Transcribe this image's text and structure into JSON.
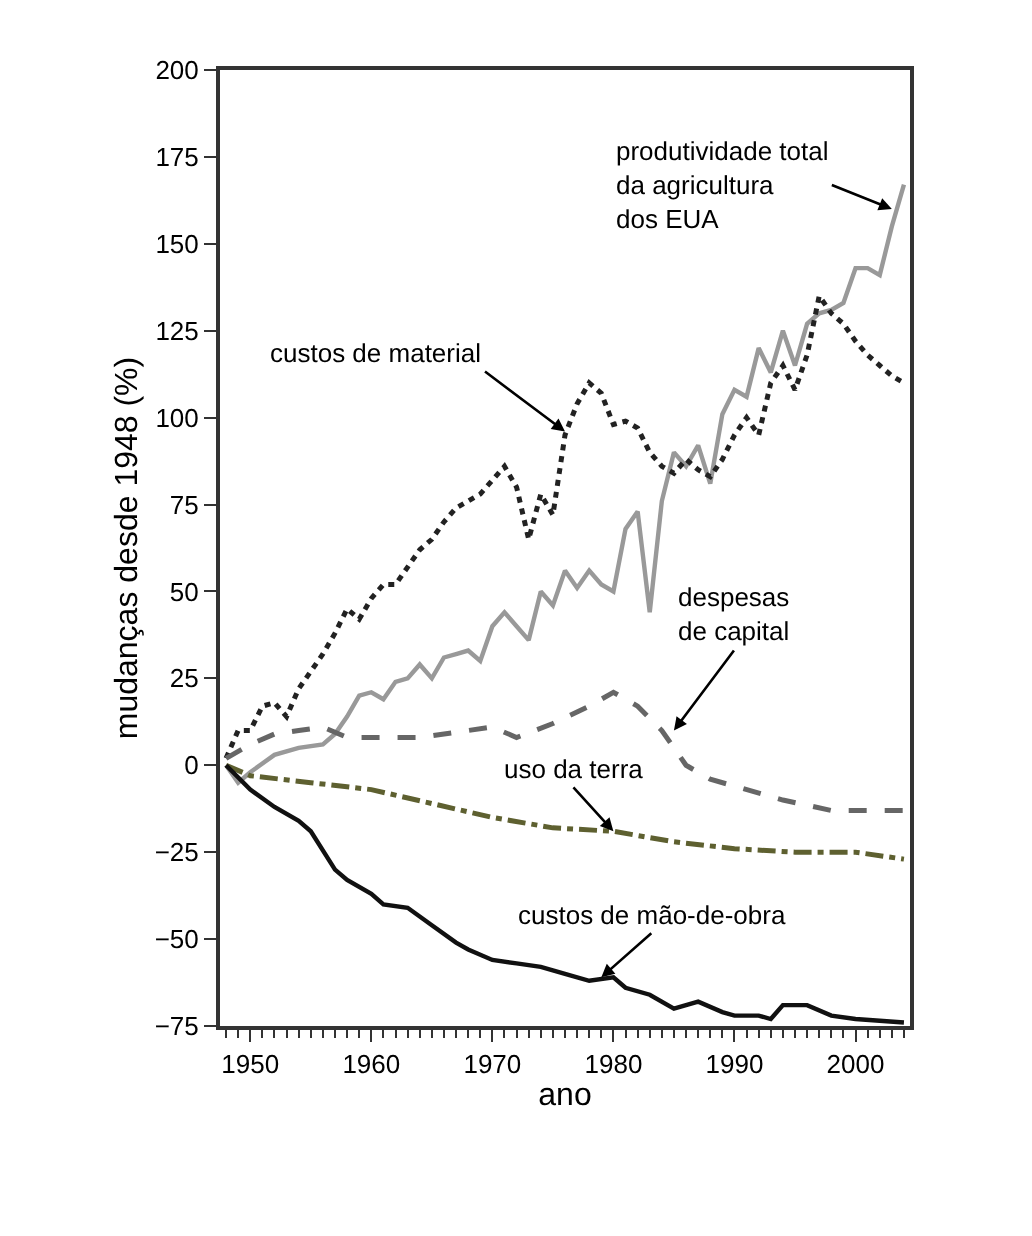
{
  "chart_data": {
    "type": "line",
    "xlabel": "ano",
    "ylabel": "mudanças desde 1948 (%)",
    "xlim": [
      1947.5,
      2004.5
    ],
    "xticks": [
      1950,
      1960,
      1970,
      1980,
      1990,
      2000
    ],
    "ylim": [
      -75,
      200
    ],
    "yticks": [
      -75,
      -50,
      -25,
      0,
      25,
      50,
      75,
      100,
      125,
      150,
      175,
      200
    ],
    "marker": "none",
    "series": [
      {
        "color": "#999999",
        "line_style": "solid",
        "x": [
          1948,
          1949,
          1950,
          1952,
          1954,
          1956,
          1957,
          1958,
          1959,
          1960,
          1961,
          1962,
          1963,
          1964,
          1965,
          1966,
          1967,
          1968,
          1969,
          1970,
          1971,
          1972,
          1973,
          1974,
          1975,
          1976,
          1977,
          1978,
          1979,
          1980,
          1981,
          1982,
          1983,
          1984,
          1985,
          1986,
          1987,
          1988,
          1989,
          1990,
          1991,
          1992,
          1993,
          1994,
          1995,
          1996,
          1997,
          1998,
          1999,
          2000,
          2001,
          2002,
          2003,
          2004
        ],
        "values": [
          0,
          -5,
          -2,
          3,
          5,
          6,
          9,
          14,
          20,
          21,
          19,
          24,
          25,
          29,
          25,
          31,
          32,
          33,
          30,
          40,
          44,
          40,
          36,
          50,
          46,
          56,
          51,
          56,
          52,
          50,
          68,
          73,
          44,
          76,
          90,
          86,
          92,
          81,
          101,
          108,
          106,
          120,
          113,
          125,
          115,
          127,
          130,
          131,
          133,
          143,
          143,
          141,
          155,
          167
        ]
      },
      {
        "color": "#222222",
        "line_style": "dotted",
        "x": [
          1948,
          1949,
          1950,
          1951,
          1952,
          1953,
          1954,
          1955,
          1956,
          1957,
          1958,
          1959,
          1960,
          1961,
          1962,
          1963,
          1964,
          1965,
          1966,
          1967,
          1968,
          1969,
          1970,
          1971,
          1972,
          1973,
          1974,
          1975,
          1976,
          1977,
          1978,
          1979,
          1980,
          1981,
          1982,
          1983,
          1984,
          1985,
          1986,
          1987,
          1988,
          1989,
          1990,
          1991,
          1992,
          1993,
          1994,
          1995,
          1996,
          1997,
          1998,
          1999,
          2000,
          2001,
          2002,
          2003,
          2004
        ],
        "values": [
          2,
          10,
          10,
          17,
          18,
          14,
          22,
          27,
          32,
          38,
          45,
          42,
          48,
          52,
          52,
          57,
          62,
          65,
          70,
          74,
          76,
          78,
          82,
          86,
          80,
          65,
          78,
          72,
          95,
          104,
          110,
          107,
          98,
          99,
          97,
          90,
          86,
          84,
          88,
          85,
          83,
          88,
          95,
          100,
          95,
          110,
          115,
          108,
          118,
          135,
          130,
          127,
          122,
          118,
          115,
          112,
          110
        ]
      },
      {
        "color": "#666666",
        "line_style": "dashed",
        "x": [
          1948,
          1950,
          1952,
          1954,
          1956,
          1958,
          1960,
          1964,
          1968,
          1970,
          1972,
          1975,
          1978,
          1980,
          1982,
          1984,
          1986,
          1988,
          1990,
          1994,
          1998,
          2004
        ],
        "values": [
          2,
          6,
          9,
          10,
          11,
          8,
          8,
          8,
          10,
          11,
          8,
          12,
          17,
          21,
          17,
          10,
          0,
          -4,
          -6,
          -10,
          -13,
          -13
        ]
      },
      {
        "color": "#5e6030",
        "line_style": "dashdot",
        "x": [
          1948,
          1950,
          1955,
          1960,
          1965,
          1970,
          1975,
          1980,
          1985,
          1990,
          1995,
          2000,
          2004
        ],
        "values": [
          0,
          -3,
          -5,
          -7,
          -11,
          -15,
          -18,
          -19,
          -22,
          -24,
          -25,
          -25,
          -27
        ]
      },
      {
        "color": "#111111",
        "line_style": "solid",
        "x": [
          1948,
          1950,
          1952,
          1954,
          1955,
          1957,
          1958,
          1960,
          1961,
          1963,
          1965,
          1967,
          1968,
          1970,
          1972,
          1974,
          1976,
          1978,
          1980,
          1981,
          1983,
          1985,
          1987,
          1989,
          1990,
          1992,
          1993,
          1994,
          1996,
          1998,
          2000,
          2004
        ],
        "values": [
          0,
          -7,
          -12,
          -16,
          -19,
          -30,
          -33,
          -37,
          -40,
          -41,
          -46,
          -51,
          -53,
          -56,
          -57,
          -58,
          -60,
          -62,
          -61,
          -64,
          -66,
          -70,
          -68,
          -71,
          -72,
          -72,
          -73,
          -69,
          -69,
          -72,
          -73,
          -74
        ]
      }
    ],
    "annotations": [
      {
        "text": "produtividade total\nda agricultura\ndos EUA",
        "x": 2003,
        "y": 160
      },
      {
        "text": "custos de material",
        "x": 1976,
        "y": 96
      },
      {
        "text": "despesas\nde capital",
        "x": 1985,
        "y": 10
      },
      {
        "text": "uso da terra",
        "x": 1980,
        "y": -19
      },
      {
        "text": "custos de mão-de-obra",
        "x": 1979,
        "y": -61
      }
    ]
  }
}
